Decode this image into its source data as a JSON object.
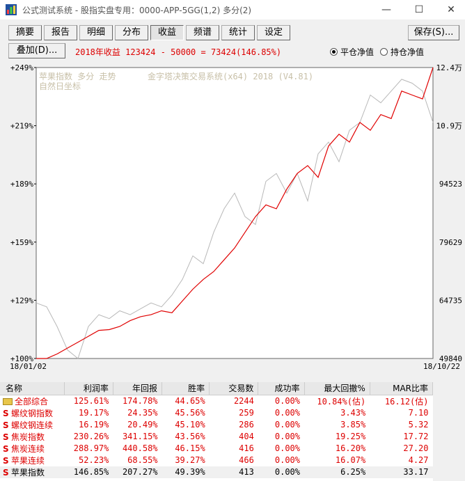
{
  "window": {
    "title": "公式测试系统 - 股指实盘专用：0000-APP-5GG(1,2) 多分(2)",
    "minimize": "—",
    "maximize": "☐",
    "close": "✕"
  },
  "tabs": [
    {
      "label": "摘要",
      "active": false
    },
    {
      "label": "报告",
      "active": false
    },
    {
      "label": "明细",
      "active": false
    },
    {
      "label": "分布",
      "active": false
    },
    {
      "label": "收益",
      "active": true
    },
    {
      "label": "频谱",
      "active": false
    },
    {
      "label": "统计",
      "active": false
    },
    {
      "label": "设定",
      "active": false
    }
  ],
  "save_label": "保存(S)...",
  "overlay_label": "叠加(D)...",
  "summary_text": "2018年收益 123424 - 50000 = 73424(146.85%)",
  "radios": [
    {
      "label": "平仓净值",
      "checked": true
    },
    {
      "label": "持仓净值",
      "checked": false
    }
  ],
  "chart": {
    "legend_line1": "苹果指数 多分 走势",
    "legend_line2": "自然日坐标",
    "watermark": "金字塔决策交易系统(x64) 2018 (V4.81)",
    "left_ticks": [
      "+249%",
      "+219%",
      "+189%",
      "+159%",
      "+129%",
      "+100%"
    ],
    "right_ticks": [
      "12.4万",
      "10.9万",
      "94523",
      "79629",
      "64735",
      "49840"
    ],
    "x_start": "18/01/02",
    "x_end": "18/10/22",
    "colors": {
      "equity": "#e00000",
      "price": "#b8b8b8"
    }
  },
  "chart_data": {
    "type": "line",
    "title": "",
    "xlabel": "",
    "ylabel": "",
    "x_range": [
      "18/01/02",
      "18/10/22"
    ],
    "ylim_left_pct": [
      100,
      249
    ],
    "ylim_right": [
      49840,
      124000
    ],
    "series": [
      {
        "values": [
          49840,
          49840,
          51000,
          52500,
          54000,
          55500,
          57000,
          57200,
          58000,
          59500,
          60500,
          61000,
          62000,
          61500,
          64500,
          67500,
          70000,
          72000,
          75000,
          78000,
          82000,
          86000,
          89000,
          88000,
          93000,
          97000,
          99000,
          96000,
          104000,
          107000,
          105000,
          110000,
          108000,
          112000,
          111000,
          118000,
          117000,
          116000,
          124000
        ]
      },
      {
        "values": [
          64000,
          63000,
          58000,
          52000,
          49000,
          58000,
          61000,
          60000,
          62000,
          61000,
          62500,
          64000,
          63000,
          66000,
          70000,
          76000,
          74000,
          82000,
          88000,
          92000,
          86000,
          84000,
          95000,
          97000,
          92000,
          97000,
          90000,
          102000,
          105000,
          100000,
          108000,
          110000,
          117000,
          115000,
          118000,
          121000,
          120000,
          118000,
          110000
        ]
      }
    ],
    "grid": false
  },
  "table": {
    "headers": [
      "名称",
      "利润率",
      "年回报",
      "胜率",
      "交易数",
      "成功率",
      "最大回撤%",
      "MAR比率"
    ],
    "rows": [
      {
        "icon": "folder",
        "name": "全部综合",
        "cells": [
          "125.61%",
          "174.78%",
          "44.65%",
          "2244",
          "0.00%",
          "10.84%(估)",
          "16.12(估)"
        ]
      },
      {
        "icon": "S",
        "name": "螺纹钢指数",
        "cells": [
          "19.17%",
          "24.35%",
          "45.56%",
          "259",
          "0.00%",
          "3.43%",
          "7.10"
        ]
      },
      {
        "icon": "S",
        "name": "螺纹钢连续",
        "cells": [
          "16.19%",
          "20.49%",
          "45.10%",
          "286",
          "0.00%",
          "3.85%",
          "5.32"
        ]
      },
      {
        "icon": "S",
        "name": "焦炭指数",
        "cells": [
          "230.26%",
          "341.15%",
          "43.56%",
          "404",
          "0.00%",
          "19.25%",
          "17.72"
        ]
      },
      {
        "icon": "S",
        "name": "焦炭连续",
        "cells": [
          "288.97%",
          "440.58%",
          "46.15%",
          "416",
          "0.00%",
          "16.20%",
          "27.20"
        ]
      },
      {
        "icon": "S",
        "name": "苹果连续",
        "cells": [
          "52.23%",
          "68.55%",
          "39.27%",
          "466",
          "0.00%",
          "16.07%",
          "4.27"
        ]
      },
      {
        "icon": "S",
        "name": "苹果指数",
        "cells": [
          "146.85%",
          "207.27%",
          "49.39%",
          "413",
          "0.00%",
          "6.25%",
          "33.17"
        ]
      }
    ]
  }
}
